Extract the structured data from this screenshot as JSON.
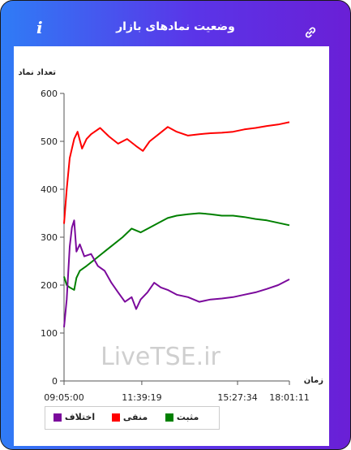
{
  "header": {
    "title": "وضعیت نمادهای بازار",
    "info_label": "i",
    "info_icon": "info-icon",
    "link_icon": "link-icon"
  },
  "watermark": "LiveTSE.ir",
  "legend": [
    {
      "label": "اختلاف",
      "color": "#7b0a9c"
    },
    {
      "label": "منفی",
      "color": "#ff0000"
    },
    {
      "label": "مثبت",
      "color": "#008000"
    }
  ],
  "chart_data": {
    "type": "line",
    "ylabel": "تعداد نماد",
    "xlabel": "زمان",
    "ylim": [
      0,
      600
    ],
    "y_ticks": [
      "0",
      "100",
      "200",
      "300",
      "400",
      "500",
      "600"
    ],
    "x_ticks": [
      "09:05:00",
      "11:39:19",
      "15:27:34",
      "18:01:11"
    ],
    "x_range": [
      "09:05:00",
      "18:01:11"
    ],
    "grid": false,
    "legend_position": "bottom",
    "series": [
      {
        "name": "منفی",
        "color": "#ff0000",
        "x": [
          0,
          0.012,
          0.025,
          0.045,
          0.06,
          0.08,
          0.1,
          0.12,
          0.16,
          0.2,
          0.24,
          0.28,
          0.32,
          0.35,
          0.38,
          0.42,
          0.46,
          0.5,
          0.55,
          0.6,
          0.65,
          0.7,
          0.75,
          0.8,
          0.85,
          0.9,
          0.95,
          1.0
        ],
        "values": [
          328,
          400,
          465,
          505,
          520,
          485,
          505,
          515,
          528,
          510,
          495,
          505,
          490,
          480,
          500,
          515,
          530,
          520,
          512,
          515,
          517,
          518,
          520,
          525,
          528,
          532,
          535,
          540
        ]
      },
      {
        "name": "مثبت",
        "color": "#008000",
        "x": [
          0,
          0.012,
          0.025,
          0.045,
          0.055,
          0.07,
          0.1,
          0.14,
          0.18,
          0.22,
          0.26,
          0.3,
          0.34,
          0.38,
          0.42,
          0.46,
          0.5,
          0.55,
          0.6,
          0.65,
          0.7,
          0.75,
          0.8,
          0.85,
          0.9,
          0.95,
          1.0
        ],
        "values": [
          218,
          200,
          195,
          190,
          215,
          230,
          240,
          255,
          270,
          285,
          300,
          318,
          310,
          320,
          330,
          340,
          345,
          348,
          350,
          348,
          345,
          345,
          342,
          338,
          335,
          330,
          325
        ]
      },
      {
        "name": "اختلاف",
        "color": "#7b0a9c",
        "x": [
          0,
          0.012,
          0.025,
          0.035,
          0.045,
          0.055,
          0.07,
          0.09,
          0.12,
          0.15,
          0.18,
          0.21,
          0.24,
          0.27,
          0.3,
          0.32,
          0.34,
          0.37,
          0.4,
          0.43,
          0.46,
          0.5,
          0.55,
          0.6,
          0.65,
          0.7,
          0.75,
          0.8,
          0.85,
          0.9,
          0.95,
          1.0
        ],
        "values": [
          112,
          170,
          280,
          320,
          335,
          270,
          285,
          260,
          265,
          240,
          230,
          205,
          185,
          165,
          175,
          150,
          170,
          185,
          205,
          195,
          190,
          180,
          175,
          165,
          170,
          172,
          175,
          180,
          185,
          192,
          200,
          212
        ]
      }
    ]
  }
}
